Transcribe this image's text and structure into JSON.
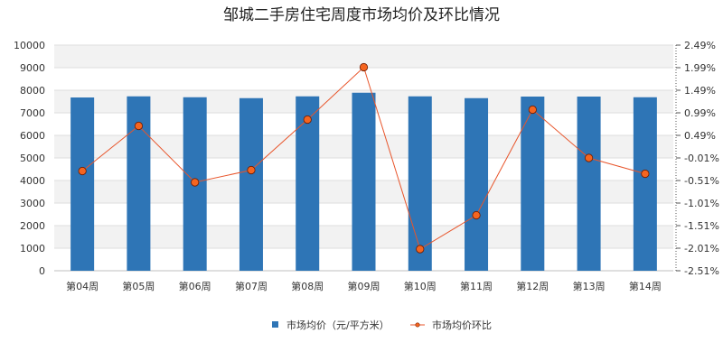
{
  "chart_data": {
    "type": "bar",
    "title": "邹城二手房住宅周度市场均价及环比情况",
    "categories": [
      "第04周",
      "第05周",
      "第06周",
      "第07周",
      "第08周",
      "第09周",
      "第10周",
      "第11周",
      "第12周",
      "第13周",
      "第14周"
    ],
    "series": [
      {
        "name": "市场均价（元/平方米）",
        "type": "bar",
        "axis": "left",
        "color": "#2e75b6",
        "values": [
          7680,
          7730,
          7690,
          7650,
          7730,
          7890,
          7730,
          7650,
          7720,
          7720,
          7690
        ]
      },
      {
        "name": "市场均价环比",
        "type": "line",
        "axis": "right",
        "color": "#e8552b",
        "marker_fill": "#f5651f",
        "values": [
          -0.3,
          0.7,
          -0.55,
          -0.28,
          0.84,
          2.0,
          -2.03,
          -1.28,
          1.06,
          -0.01,
          -0.36
        ]
      }
    ],
    "y_left": {
      "ylim": [
        0,
        10000
      ],
      "ticks": [
        0,
        1000,
        2000,
        3000,
        4000,
        5000,
        6000,
        7000,
        8000,
        9000,
        10000
      ],
      "tick_labels": [
        "0",
        "1000",
        "2000",
        "3000",
        "4000",
        "5000",
        "6000",
        "7000",
        "8000",
        "9000",
        "10000"
      ]
    },
    "y_right": {
      "ylim": [
        -2.51,
        2.49
      ],
      "unit": "%",
      "ticks": [
        -2.51,
        -2.01,
        -1.51,
        -1.01,
        -0.51,
        -0.01,
        0.49,
        0.99,
        1.49,
        1.99,
        2.49
      ],
      "tick_labels": [
        "-2.51%",
        "-2.01%",
        "-1.51%",
        "-1.01%",
        "-0.51%",
        "-0.01%",
        "0.49%",
        "0.99%",
        "1.49%",
        "1.99%",
        "2.49%"
      ]
    },
    "grid": "horizontal, alternating bands",
    "legend_position": "bottom"
  }
}
